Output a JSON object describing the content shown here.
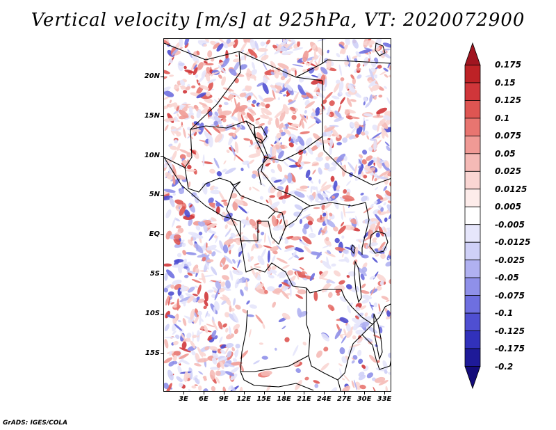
{
  "title": "Vertical velocity [m/s] at 925hPa, VT: 2020072900",
  "credit": "GrADS: IGES/COLA",
  "lat_labels": [
    "20N",
    "15N",
    "10N",
    "5N",
    "EQ",
    "5S",
    "10S",
    "15S"
  ],
  "lon_labels": [
    "3E",
    "6E",
    "9E",
    "12E",
    "15E",
    "18E",
    "21E",
    "24E",
    "27E",
    "30E",
    "33E"
  ],
  "colorbar": {
    "levels": [
      "0.175",
      "0.15",
      "0.125",
      "0.1",
      "0.075",
      "0.05",
      "0.025",
      "0.0125",
      "0.005",
      "-0.005",
      "-0.0125",
      "-0.025",
      "-0.05",
      "-0.075",
      "-0.1",
      "-0.125",
      "-0.175",
      "-0.2"
    ],
    "colors": [
      "#a01520",
      "#bd2226",
      "#d0363a",
      "#de5552",
      "#e87570",
      "#f09a95",
      "#f5bab6",
      "#fad6d3",
      "#fdecea",
      "#ffffff",
      "#e6e6fb",
      "#cfd0f7",
      "#b0b1f1",
      "#8f90e9",
      "#6e6fe0",
      "#4f4fd2",
      "#3131bb",
      "#1e1a98",
      "#140c7a"
    ]
  },
  "map": {
    "lon_range": [
      0,
      35
    ],
    "lat_range": [
      -20,
      25
    ],
    "background": "white",
    "features": [
      "country-borders",
      "coastlines",
      "lakes"
    ]
  }
}
